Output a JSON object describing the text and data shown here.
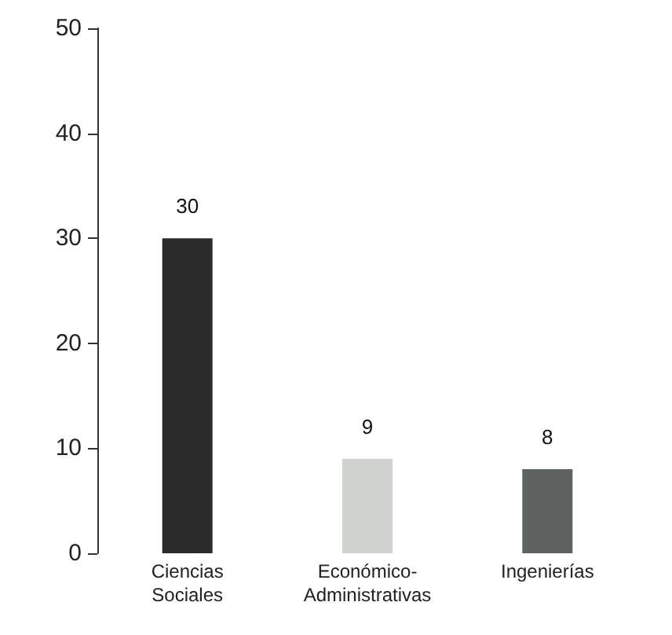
{
  "chart_data": {
    "type": "bar",
    "categories": [
      "Ciencias Sociales",
      "Económico-Administrativas",
      "Ingenierías"
    ],
    "values": [
      30,
      9,
      8
    ],
    "colors": [
      "#2b2b2b",
      "#cfd3cf",
      "#5e6361"
    ],
    "ylim": [
      0,
      50
    ],
    "yticks": [
      0,
      10,
      20,
      30,
      40,
      50
    ],
    "grid": false,
    "data_labels": true
  }
}
